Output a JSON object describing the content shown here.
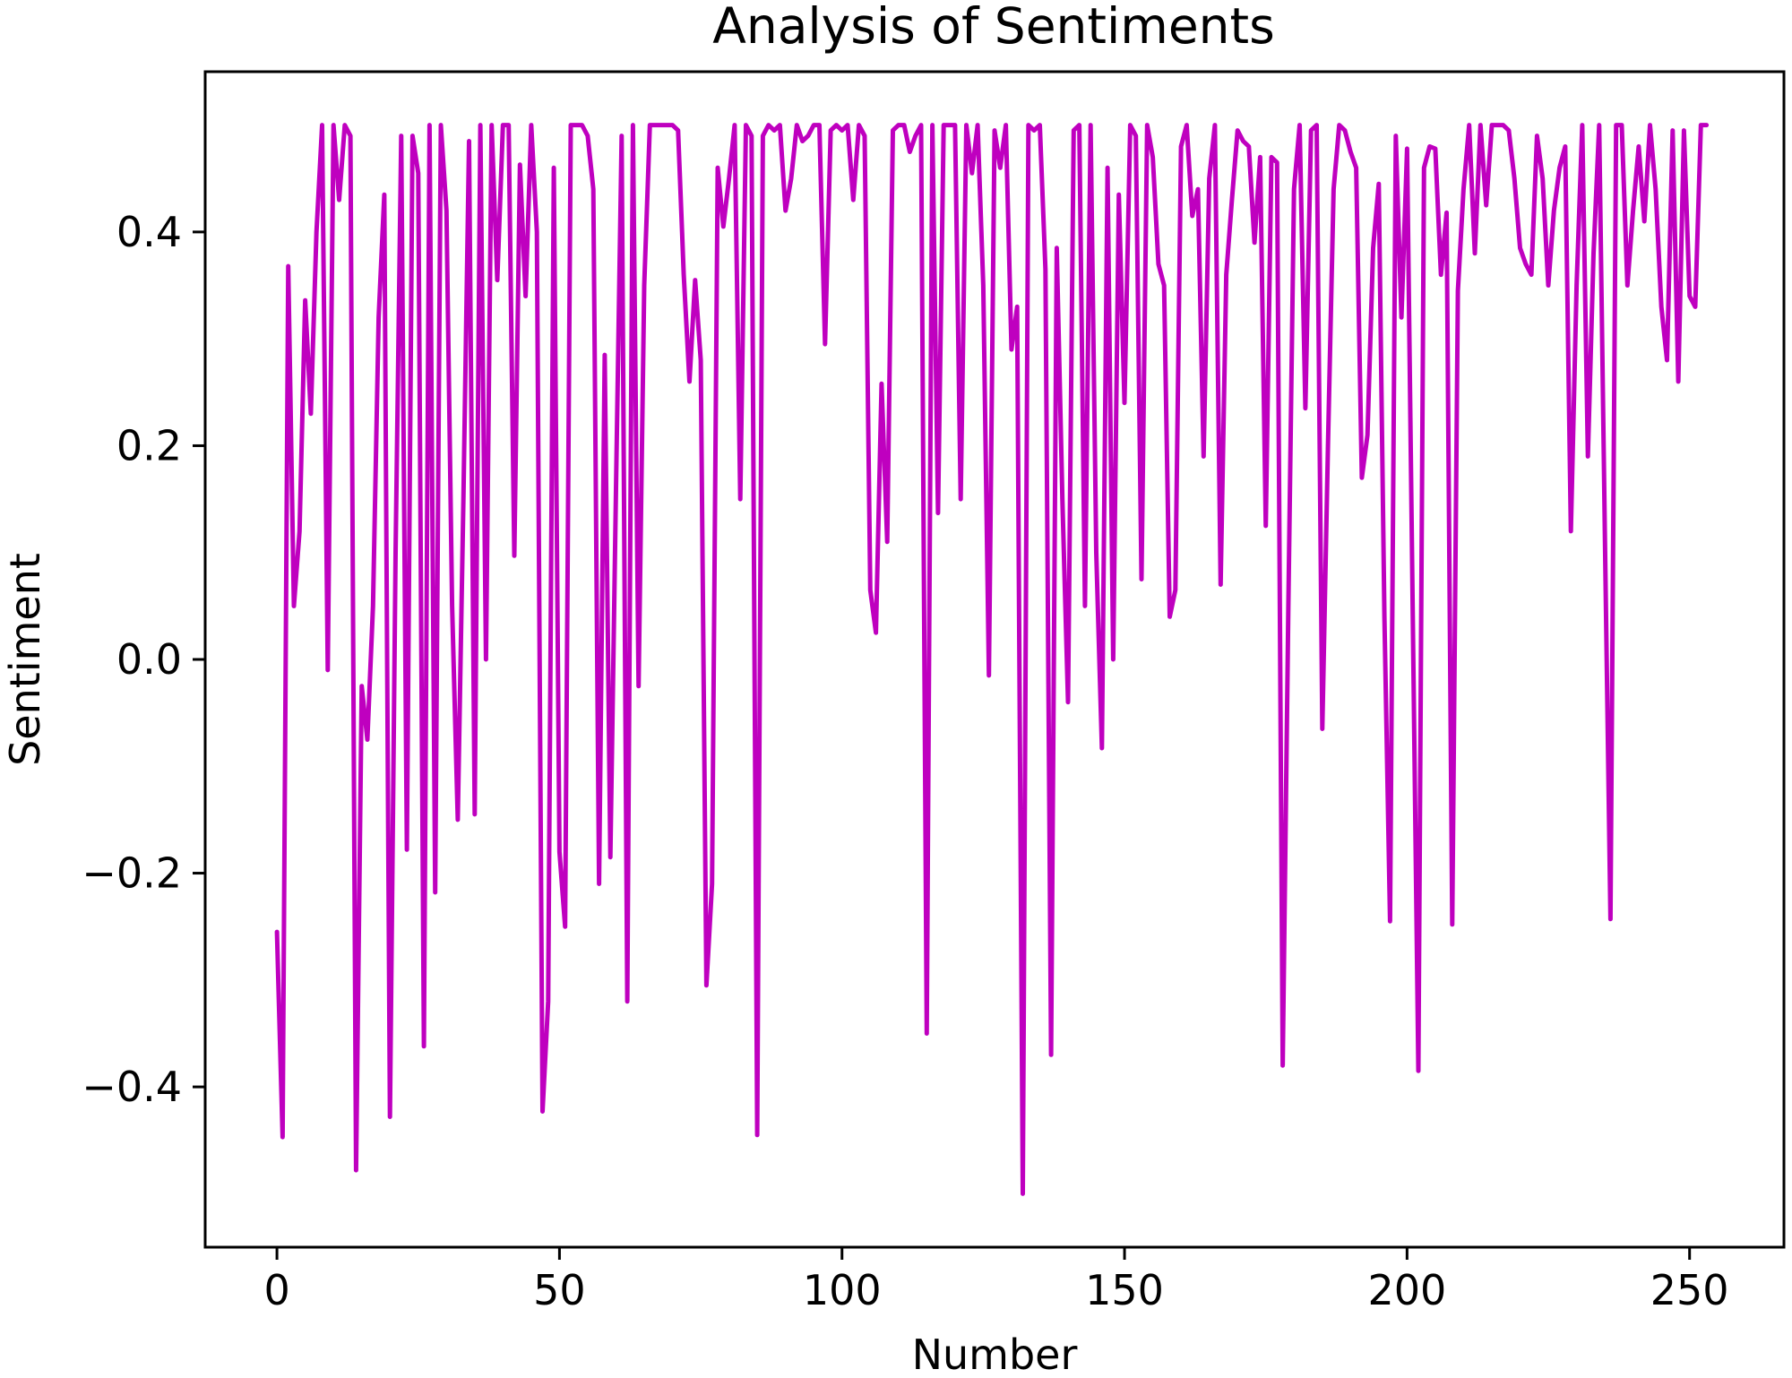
{
  "chart_data": {
    "type": "line",
    "title": "Analysis of Sentiments",
    "xlabel": "Number",
    "ylabel": "Sentiment",
    "xlim": [
      -12.7,
      266.7
    ],
    "ylim": [
      -0.55,
      0.55
    ],
    "xticks": [
      0,
      50,
      100,
      150,
      200,
      250
    ],
    "yticks": [
      -0.4,
      -0.2,
      0.0,
      0.2,
      0.4
    ],
    "xtick_labels": [
      "0",
      "50",
      "100",
      "150",
      "200",
      "250"
    ],
    "ytick_labels": [
      "−0.4",
      "−0.2",
      "0.0",
      "0.2",
      "0.4"
    ],
    "grid": false,
    "legend": false,
    "series": [
      {
        "color": "#bf00bf",
        "x": [
          0,
          1,
          2,
          3,
          4,
          5,
          6,
          7,
          8,
          9,
          10,
          11,
          12,
          13,
          14,
          15,
          16,
          17,
          18,
          19,
          20,
          21,
          22,
          23,
          24,
          25,
          26,
          27,
          28,
          29,
          30,
          31,
          32,
          33,
          34,
          35,
          36,
          37,
          38,
          39,
          40,
          41,
          42,
          43,
          44,
          45,
          46,
          47,
          48,
          49,
          50,
          51,
          52,
          53,
          54,
          55,
          56,
          57,
          58,
          59,
          60,
          61,
          62,
          63,
          64,
          65,
          66,
          67,
          68,
          69,
          70,
          71,
          72,
          73,
          74,
          75,
          76,
          77,
          78,
          79,
          80,
          81,
          82,
          83,
          84,
          85,
          86,
          87,
          88,
          89,
          90,
          91,
          92,
          93,
          94,
          95,
          96,
          97,
          98,
          99,
          100,
          101,
          102,
          103,
          104,
          105,
          106,
          107,
          108,
          109,
          110,
          111,
          112,
          113,
          114,
          115,
          116,
          117,
          118,
          119,
          120,
          121,
          122,
          123,
          124,
          125,
          126,
          127,
          128,
          129,
          130,
          131,
          132,
          133,
          134,
          135,
          136,
          137,
          138,
          139,
          140,
          141,
          142,
          143,
          144,
          145,
          146,
          147,
          148,
          149,
          150,
          151,
          152,
          153,
          154,
          155,
          156,
          157,
          158,
          159,
          160,
          161,
          162,
          163,
          164,
          165,
          166,
          167,
          168,
          169,
          170,
          171,
          172,
          173,
          174,
          175,
          176,
          177,
          178,
          179,
          180,
          181,
          182,
          183,
          184,
          185,
          186,
          187,
          188,
          189,
          190,
          191,
          192,
          193,
          194,
          195,
          196,
          197,
          198,
          199,
          200,
          201,
          202,
          203,
          204,
          205,
          206,
          207,
          208,
          209,
          210,
          211,
          212,
          213,
          214,
          215,
          216,
          217,
          218,
          219,
          220,
          221,
          222,
          223,
          224,
          225,
          226,
          227,
          228,
          229,
          230,
          231,
          232,
          233,
          234,
          235,
          236,
          237,
          238,
          239,
          240,
          241,
          242,
          243,
          244,
          245,
          246,
          247,
          248,
          249,
          250,
          251,
          252,
          253
        ],
        "y": [
          -0.255,
          -0.447,
          0.368,
          0.05,
          0.12,
          0.336,
          0.23,
          0.4,
          0.5,
          -0.01,
          0.5,
          0.43,
          0.5,
          0.49,
          -0.478,
          -0.025,
          -0.075,
          0.05,
          0.32,
          0.435,
          -0.428,
          0.1,
          0.49,
          -0.178,
          0.49,
          0.455,
          -0.362,
          0.5,
          -0.218,
          0.5,
          0.42,
          0.05,
          -0.15,
          0.15,
          0.485,
          -0.145,
          0.5,
          0.0,
          0.5,
          0.355,
          0.5,
          0.5,
          0.097,
          0.463,
          0.34,
          0.5,
          0.4,
          -0.423,
          -0.32,
          0.46,
          -0.18,
          -0.25,
          0.5,
          0.5,
          0.5,
          0.49,
          0.44,
          -0.21,
          0.285,
          -0.185,
          0.16,
          0.49,
          -0.32,
          0.5,
          -0.025,
          0.35,
          0.5,
          0.5,
          0.5,
          0.5,
          0.5,
          0.495,
          0.36,
          0.26,
          0.355,
          0.28,
          -0.305,
          -0.21,
          0.46,
          0.405,
          0.45,
          0.5,
          0.15,
          0.5,
          0.49,
          -0.445,
          0.49,
          0.5,
          0.495,
          0.5,
          0.42,
          0.45,
          0.5,
          0.485,
          0.49,
          0.5,
          0.5,
          0.295,
          0.495,
          0.5,
          0.495,
          0.5,
          0.43,
          0.5,
          0.49,
          0.065,
          0.025,
          0.258,
          0.11,
          0.495,
          0.5,
          0.5,
          0.475,
          0.49,
          0.5,
          -0.35,
          0.5,
          0.137,
          0.5,
          0.5,
          0.5,
          0.15,
          0.5,
          0.455,
          0.5,
          0.35,
          -0.015,
          0.495,
          0.46,
          0.5,
          0.29,
          0.33,
          -0.5,
          0.5,
          0.495,
          0.5,
          0.365,
          -0.37,
          0.385,
          0.15,
          -0.04,
          0.495,
          0.5,
          0.05,
          0.5,
          0.1,
          -0.083,
          0.46,
          0.0,
          0.435,
          0.24,
          0.5,
          0.49,
          0.075,
          0.5,
          0.47,
          0.37,
          0.35,
          0.04,
          0.065,
          0.48,
          0.5,
          0.415,
          0.44,
          0.19,
          0.45,
          0.5,
          0.07,
          0.36,
          0.43,
          0.495,
          0.485,
          0.48,
          0.39,
          0.47,
          0.125,
          0.47,
          0.465,
          -0.38,
          0.05,
          0.44,
          0.5,
          0.235,
          0.495,
          0.5,
          -0.065,
          0.2,
          0.44,
          0.5,
          0.495,
          0.475,
          0.46,
          0.17,
          0.21,
          0.385,
          0.445,
          0.04,
          -0.245,
          0.49,
          0.32,
          0.478,
          0.045,
          -0.385,
          0.46,
          0.48,
          0.478,
          0.36,
          0.418,
          -0.248,
          0.345,
          0.44,
          0.5,
          0.38,
          0.5,
          0.425,
          0.5,
          0.5,
          0.5,
          0.495,
          0.45,
          0.385,
          0.37,
          0.36,
          0.49,
          0.45,
          0.35,
          0.42,
          0.46,
          0.48,
          0.12,
          0.35,
          0.5,
          0.19,
          0.38,
          0.5,
          0.12,
          -0.243,
          0.5,
          0.5,
          0.35,
          0.42,
          0.48,
          0.41,
          0.5,
          0.44,
          0.33,
          0.28,
          0.495,
          0.26,
          0.495,
          0.34,
          0.33,
          0.5,
          0.5
        ]
      }
    ]
  }
}
